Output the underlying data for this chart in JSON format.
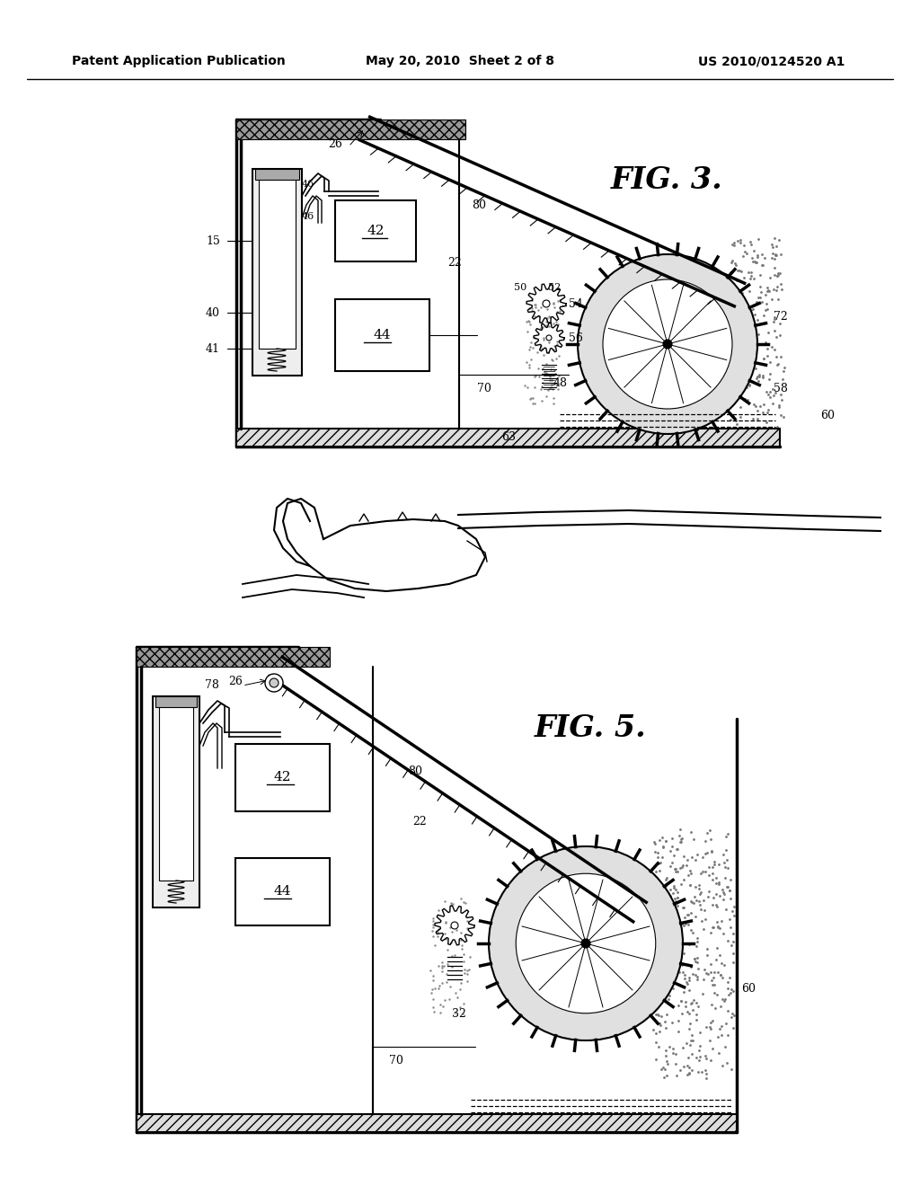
{
  "background_color": "#ffffff",
  "header_left": "Patent Application Publication",
  "header_center": "May 20, 2010  Sheet 2 of 8",
  "header_right": "US 2010/0124520 A1",
  "fig3_label": "FIG. 3.",
  "fig5_label": "FIG. 5.",
  "lc": "#000000"
}
